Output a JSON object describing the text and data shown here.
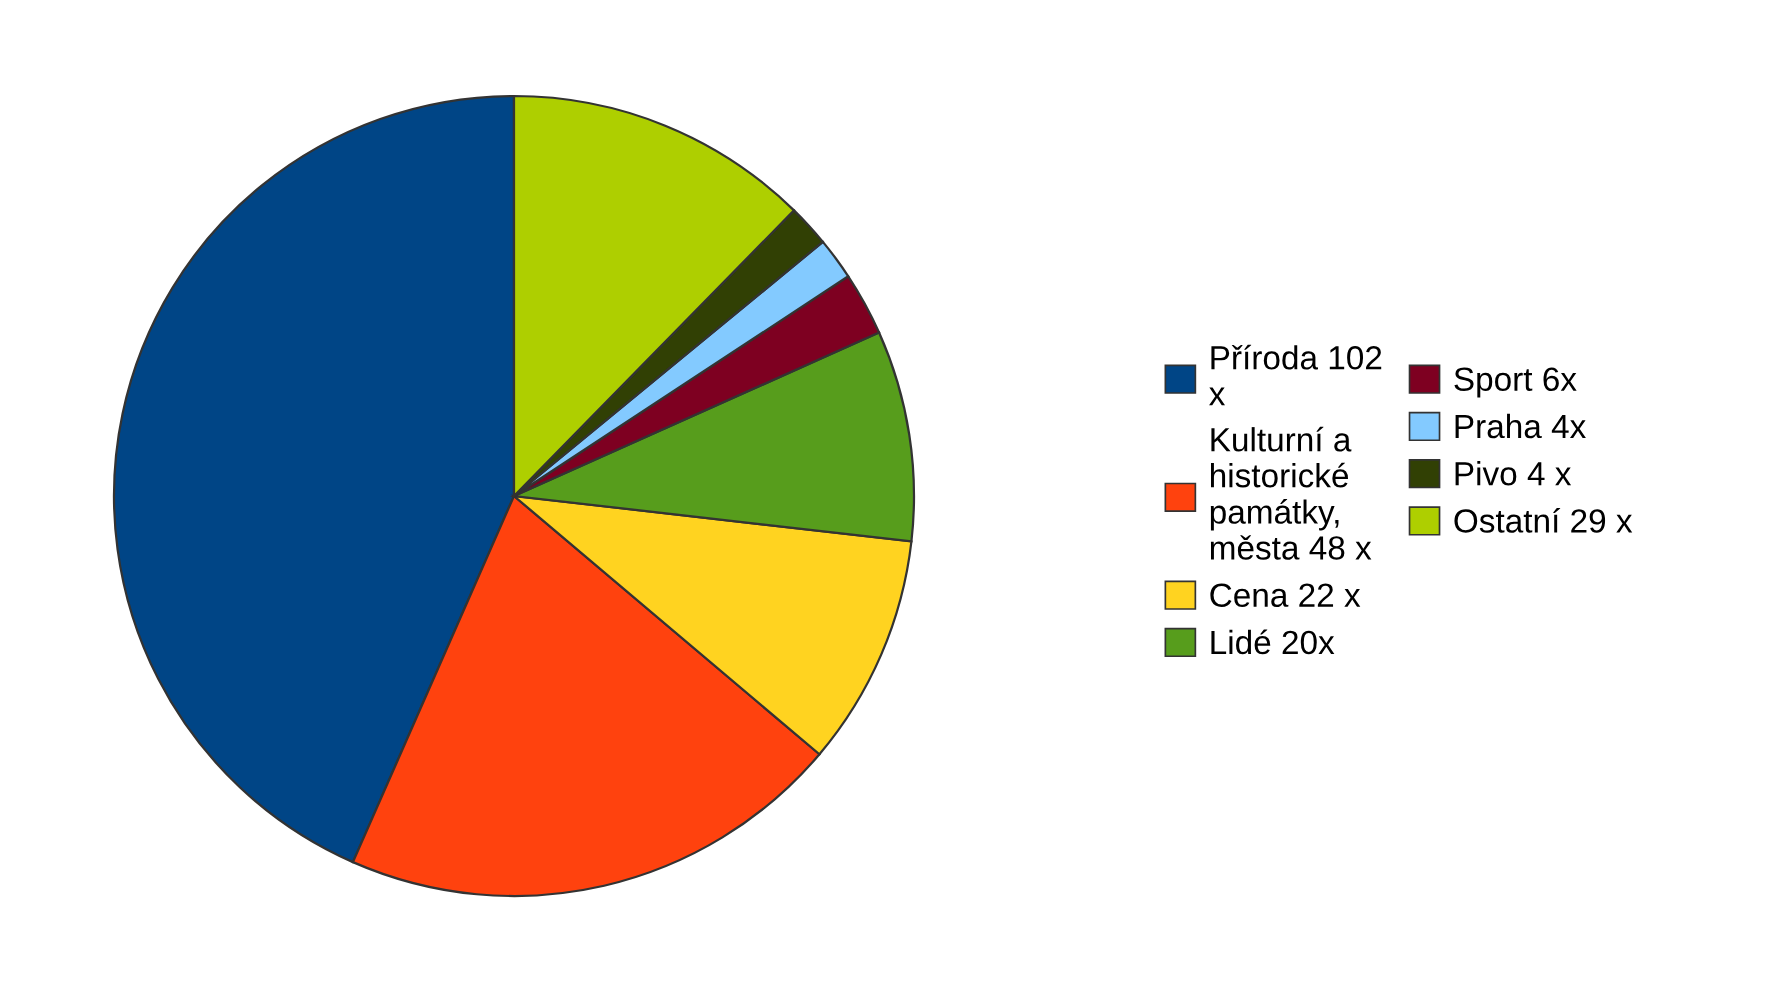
{
  "chart_data": {
    "type": "pie",
    "categories": [
      "Příroda 102 x",
      "Kulturní a historické památky, města 48 x",
      "Cena 22 x",
      "Lidé 20x",
      "Sport 6x",
      "Praha 4x",
      "Pivo 4 x",
      "Ostatní 29 x"
    ],
    "values": [
      102,
      48,
      22,
      20,
      6,
      4,
      4,
      29
    ],
    "colors": [
      "#004586",
      "#ff420e",
      "#ffd320",
      "#579d1c",
      "#7e0021",
      "#83caff",
      "#314004",
      "#aecf00"
    ],
    "legend": "right"
  }
}
